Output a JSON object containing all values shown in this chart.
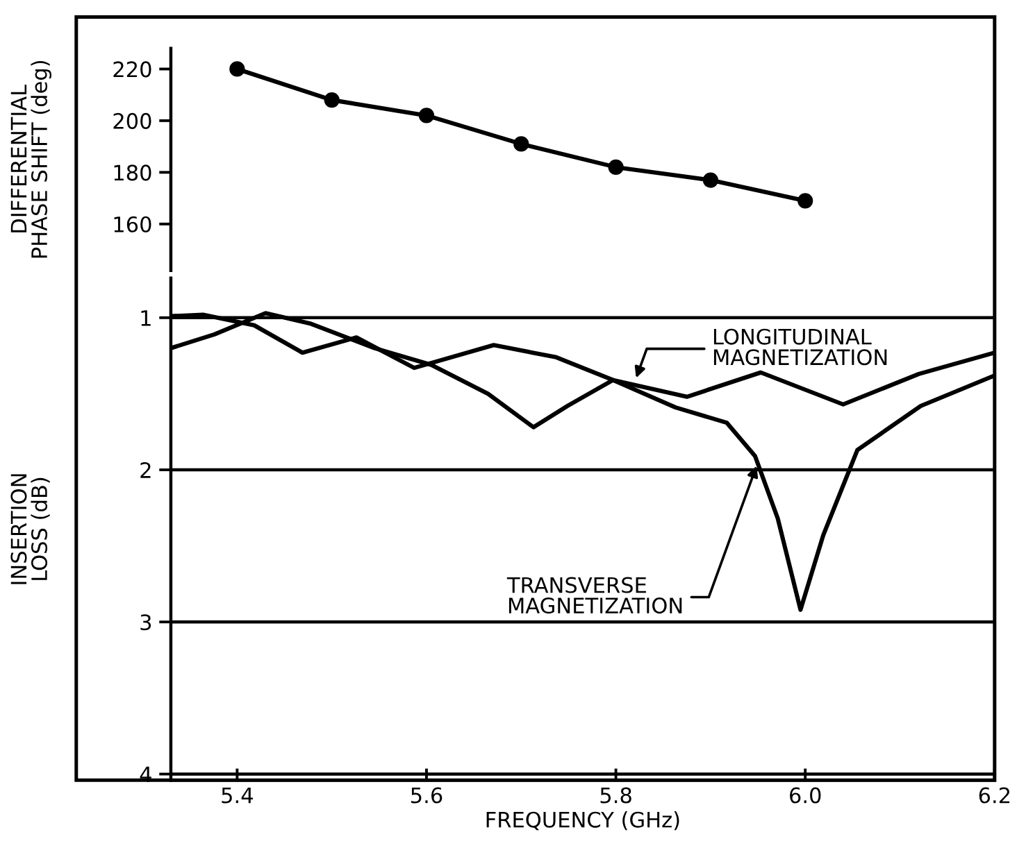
{
  "chart_data": [
    {
      "type": "line",
      "ylabel": "DIFFERENTIAL\nPHASE SHIFT (deg)",
      "x": [
        5.4,
        5.5,
        5.6,
        5.7,
        5.8,
        5.9,
        6.0
      ],
      "xlim": [
        5.33,
        6.2
      ],
      "ylim": [
        142,
        228
      ],
      "yticks": [
        160,
        180,
        200,
        220
      ],
      "tick_labels": "y",
      "marker": "circle",
      "line_style": "solid",
      "grid": false,
      "legend": false,
      "series": [
        {
          "color": "#000000",
          "values": [
            220,
            208,
            202,
            191,
            182,
            177,
            169
          ]
        }
      ]
    },
    {
      "type": "line",
      "xlabel": "FREQUENCY (GHz)",
      "ylabel": "INSERTION\nLOSS (dB)",
      "xlim": [
        5.33,
        6.2
      ],
      "xticks": [
        5.4,
        5.6,
        5.8,
        {
          "value": 6.0,
          "label": "6.0"
        },
        6.2
      ],
      "ylim": [
        4.04,
        0.74
      ],
      "yticks": [
        1,
        2,
        3,
        4
      ],
      "grid": "y",
      "legend": false,
      "marker": "none",
      "line_style": "solid",
      "series": [
        {
          "color": "#000000",
          "x": [
            5.33,
            5.364,
            5.418,
            5.469,
            5.526,
            5.587,
            5.671,
            5.737,
            5.797,
            5.875,
            5.953,
            6.04,
            6.12,
            6.2
          ],
          "values": [
            0.99,
            0.98,
            1.05,
            1.23,
            1.13,
            1.33,
            1.18,
            1.26,
            1.41,
            1.52,
            1.36,
            1.57,
            1.37,
            1.23
          ]
        },
        {
          "color": "#000000",
          "x": [
            5.33,
            5.376,
            5.43,
            5.478,
            5.545,
            5.605,
            5.665,
            5.713,
            5.749,
            5.797,
            5.863,
            5.917,
            5.947,
            5.971,
            5.995,
            6.019,
            6.055,
            6.122,
            6.2
          ],
          "values": [
            1.2,
            1.11,
            0.97,
            1.04,
            1.2,
            1.31,
            1.5,
            1.72,
            1.58,
            1.41,
            1.59,
            1.69,
            1.91,
            2.32,
            2.92,
            2.43,
            1.87,
            1.58,
            1.38
          ]
        }
      ],
      "annotations": [
        {
          "text": "LONGITUDINAL\nMAGNETIZATION",
          "x": 5.82,
          "y": 1.42
        },
        {
          "text": "TRANSVERSE\nMAGNETIZATION",
          "x": 5.95,
          "y": 1.95
        }
      ]
    }
  ]
}
